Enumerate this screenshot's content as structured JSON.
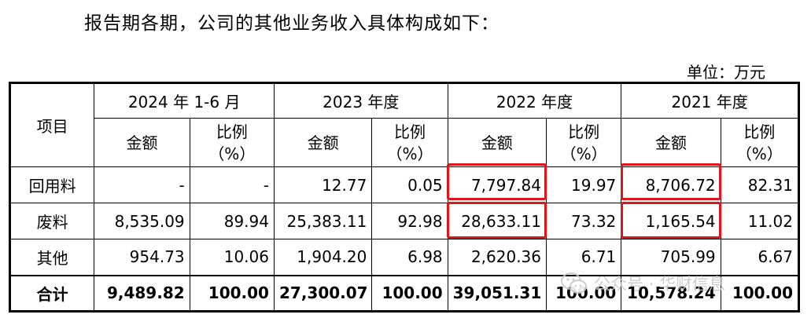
{
  "intro_text": "报告期各期，公司的其他业务收入具体构成如下：",
  "unit_text": "单位：万元",
  "table": {
    "item_header": "项目",
    "periods": [
      "2024 年 1-6 月",
      "2023 年度",
      "2022 年度",
      "2021 年度"
    ],
    "amount_header": "金额",
    "ratio_header_line1": "比例",
    "ratio_header_line2": "（%）",
    "rows": [
      {
        "label": "回用料",
        "values": [
          "-",
          "-",
          "12.77",
          "0.05",
          "7,797.84",
          "19.97",
          "8,706.72",
          "82.31"
        ]
      },
      {
        "label": "废料",
        "values": [
          "8,535.09",
          "89.94",
          "25,383.11",
          "92.98",
          "28,633.11",
          "73.32",
          "1,165.54",
          "11.02"
        ]
      },
      {
        "label": "其他",
        "values": [
          "954.73",
          "10.06",
          "1,904.20",
          "6.98",
          "2,620.36",
          "6.71",
          "705.99",
          "6.67"
        ]
      }
    ],
    "total": {
      "label": "合计",
      "values": [
        "9,489.82",
        "100.00",
        "27,300.07",
        "100.00",
        "39,051.31",
        "100.00",
        "10,578.24",
        "100.00"
      ]
    }
  },
  "highlight_color": "#e0141b",
  "watermark": {
    "icon": "wechat-logo-icon",
    "text": "公众号 · 华财信息"
  }
}
